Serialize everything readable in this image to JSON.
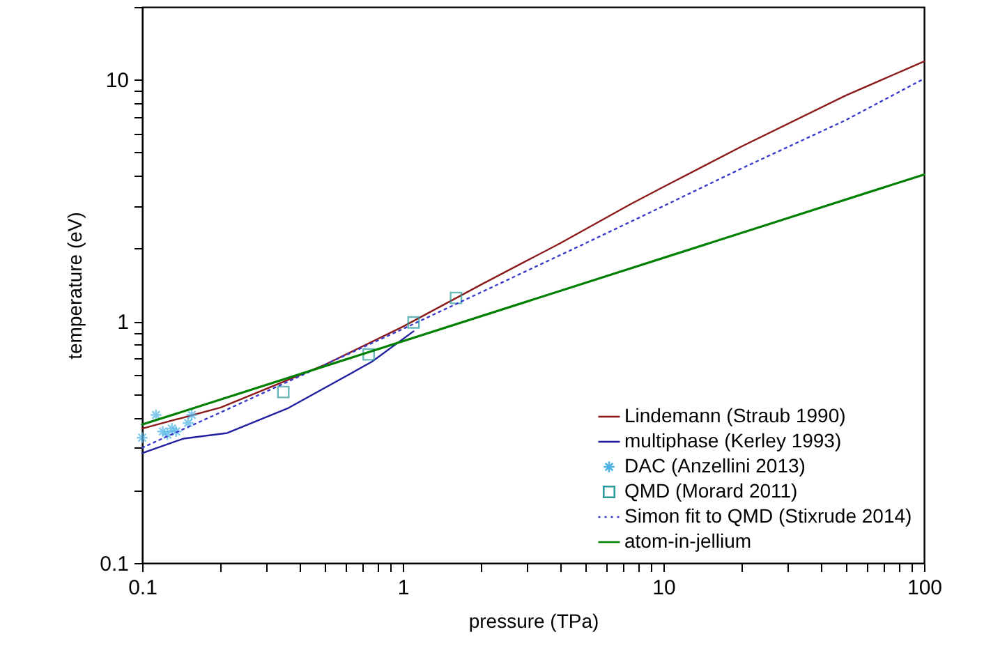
{
  "chart_data": {
    "type": "line",
    "xlabel": "pressure (TPa)",
    "ylabel": "temperature (eV)",
    "log": "xy",
    "grid": false,
    "legend": "bottom right",
    "xlim": [
      0.1,
      100
    ],
    "ylim": [
      0.1,
      20
    ],
    "xticks": [
      0.1,
      {
        "value": 0.2,
        "label": null
      },
      {
        "value": 0.3,
        "label": null
      },
      {
        "value": 0.4,
        "label": null
      },
      {
        "value": 0.5,
        "label": null
      },
      {
        "value": 0.6,
        "label": null
      },
      {
        "value": 0.7,
        "label": null
      },
      {
        "value": 0.8,
        "label": null
      },
      {
        "value": 0.9,
        "label": null
      },
      1,
      {
        "value": 2,
        "label": null
      },
      {
        "value": 3,
        "label": null
      },
      {
        "value": 4,
        "label": null
      },
      {
        "value": 5,
        "label": null
      },
      {
        "value": 6,
        "label": null
      },
      {
        "value": 7,
        "label": null
      },
      {
        "value": 8,
        "label": null
      },
      {
        "value": 9,
        "label": null
      },
      10,
      {
        "value": 20,
        "label": null
      },
      {
        "value": 30,
        "label": null
      },
      {
        "value": 40,
        "label": null
      },
      {
        "value": 50,
        "label": null
      },
      {
        "value": 60,
        "label": null
      },
      {
        "value": 70,
        "label": null
      },
      {
        "value": 80,
        "label": null
      },
      {
        "value": 90,
        "label": null
      },
      100
    ],
    "yticks": [
      0.1,
      {
        "value": 0.2,
        "label": null
      },
      {
        "value": 0.3,
        "label": null
      },
      {
        "value": 0.4,
        "label": null
      },
      {
        "value": 0.5,
        "label": null
      },
      {
        "value": 0.6,
        "label": null
      },
      {
        "value": 0.7,
        "label": null
      },
      {
        "value": 0.8,
        "label": null
      },
      {
        "value": 0.9,
        "label": null
      },
      1,
      {
        "value": 2,
        "label": null
      },
      {
        "value": 3,
        "label": null
      },
      {
        "value": 4,
        "label": null
      },
      {
        "value": 5,
        "label": null
      },
      {
        "value": 6,
        "label": null
      },
      {
        "value": 7,
        "label": null
      },
      {
        "value": 8,
        "label": null
      },
      {
        "value": 9,
        "label": null
      },
      10,
      {
        "value": 20,
        "label": null
      }
    ],
    "series": [
      {
        "name": "Lindemann (Straub 1990)",
        "color": "#8b1a1a",
        "line_style": "solid",
        "x": [
          0.1,
          0.2,
          0.5,
          1,
          2,
          4,
          7.5,
          10,
          20,
          50,
          100
        ],
        "values": [
          0.36,
          0.44,
          0.66,
          0.95,
          1.42,
          2.1,
          3.06,
          3.6,
          5.3,
          8.6,
          11.9
        ]
      },
      {
        "name": "multiphase (Kerley 1993)",
        "color": "#2020a0",
        "line_style": "solid",
        "x": [
          0.1,
          0.144,
          0.212,
          0.364,
          0.76,
          1.1
        ],
        "values": [
          0.285,
          0.327,
          0.345,
          0.438,
          0.68,
          0.91
        ]
      },
      {
        "name": "DAC (Anzellini 2013)",
        "type": "scatter",
        "color": "#4db3e6",
        "marker": "cross",
        "x": [
          0.1,
          0.113,
          0.12,
          0.125,
          0.13,
          0.135,
          0.15,
          0.155
        ],
        "values": [
          0.33,
          0.41,
          0.35,
          0.34,
          0.36,
          0.35,
          0.38,
          0.41
        ]
      },
      {
        "name": "QMD (Morard 2011)",
        "type": "scatter",
        "color": "#2a9a9a",
        "marker": "square",
        "x": [
          0.348,
          0.74,
          1.1,
          1.6
        ],
        "values": [
          0.51,
          0.73,
          0.99,
          1.25
        ]
      },
      {
        "name": "Simon fit to QMD (Stixrude 2014)",
        "color": "#3a3acc",
        "line_style": "dotted",
        "x": [
          0.1,
          0.2,
          0.5,
          1,
          2,
          5,
          10,
          20,
          50,
          100
        ],
        "values": [
          0.3,
          0.42,
          0.66,
          0.93,
          1.32,
          2.1,
          3.0,
          4.3,
          6.8,
          10.1
        ]
      },
      {
        "name": "atom-in-jellium",
        "color": "#008000",
        "line_style": "solid",
        "x": [
          0.1,
          100
        ],
        "values": [
          0.374,
          4.05
        ]
      }
    ]
  }
}
